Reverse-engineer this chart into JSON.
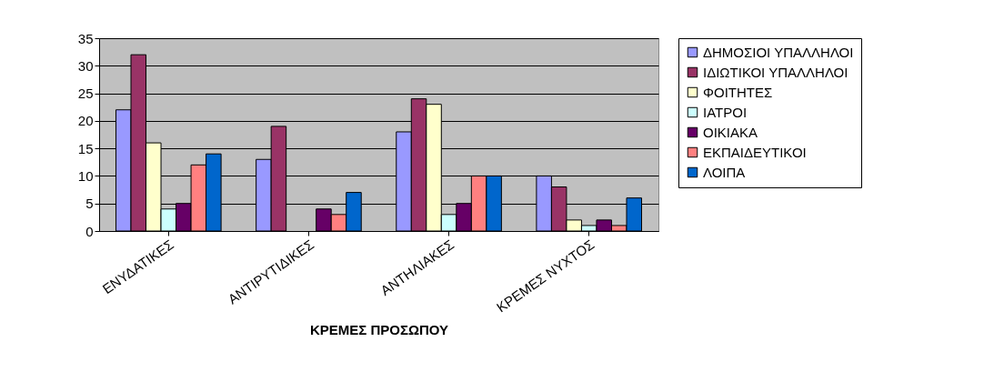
{
  "chart_data": {
    "type": "bar",
    "xlabel": "ΚΡΕΜΕΣ ΠΡΟΣΩΠΟΥ",
    "categories": [
      "ΕΝΥΔΑΤΙΚΕΣ",
      "ΑΝΤΙΡΥΤΙΔΙΚΕΣ",
      "ΑΝΤΗΛΙΑΚΕΣ",
      "ΚΡΕΜΕΣ ΝΥΧΤΟΣ"
    ],
    "series": [
      {
        "name": "ΔΗΜΟΣΙΟΙ ΥΠΑΛΛΗΛΟΙ",
        "color": "#9999ff",
        "values": [
          22,
          13,
          18,
          10
        ]
      },
      {
        "name": "ΙΔΙΩΤΙΚΟΙ ΥΠΑΛΛΗΛΟΙ",
        "color": "#993366",
        "values": [
          32,
          19,
          24,
          8
        ]
      },
      {
        "name": "ΦΟΙΤΗΤΕΣ",
        "color": "#ffffcc",
        "values": [
          16,
          null,
          23,
          2
        ]
      },
      {
        "name": "ΙΑΤΡΟΙ",
        "color": "#ccffff",
        "values": [
          4,
          null,
          3,
          1
        ]
      },
      {
        "name": "ΟΙΚΙΑΚΑ",
        "color": "#660066",
        "values": [
          5,
          4,
          5,
          2
        ]
      },
      {
        "name": "ΕΚΠΑΙΔΕΥΤΙΚΟΙ",
        "color": "#ff8080",
        "values": [
          12,
          3,
          10,
          1
        ]
      },
      {
        "name": "ΛΟΙΠΑ",
        "color": "#0066cc",
        "values": [
          14,
          7,
          10,
          6
        ]
      }
    ],
    "ylim": [
      0,
      35
    ],
    "yticks": [
      0,
      5,
      10,
      15,
      20,
      25,
      30,
      35
    ],
    "grid": "y",
    "legend": "right"
  }
}
